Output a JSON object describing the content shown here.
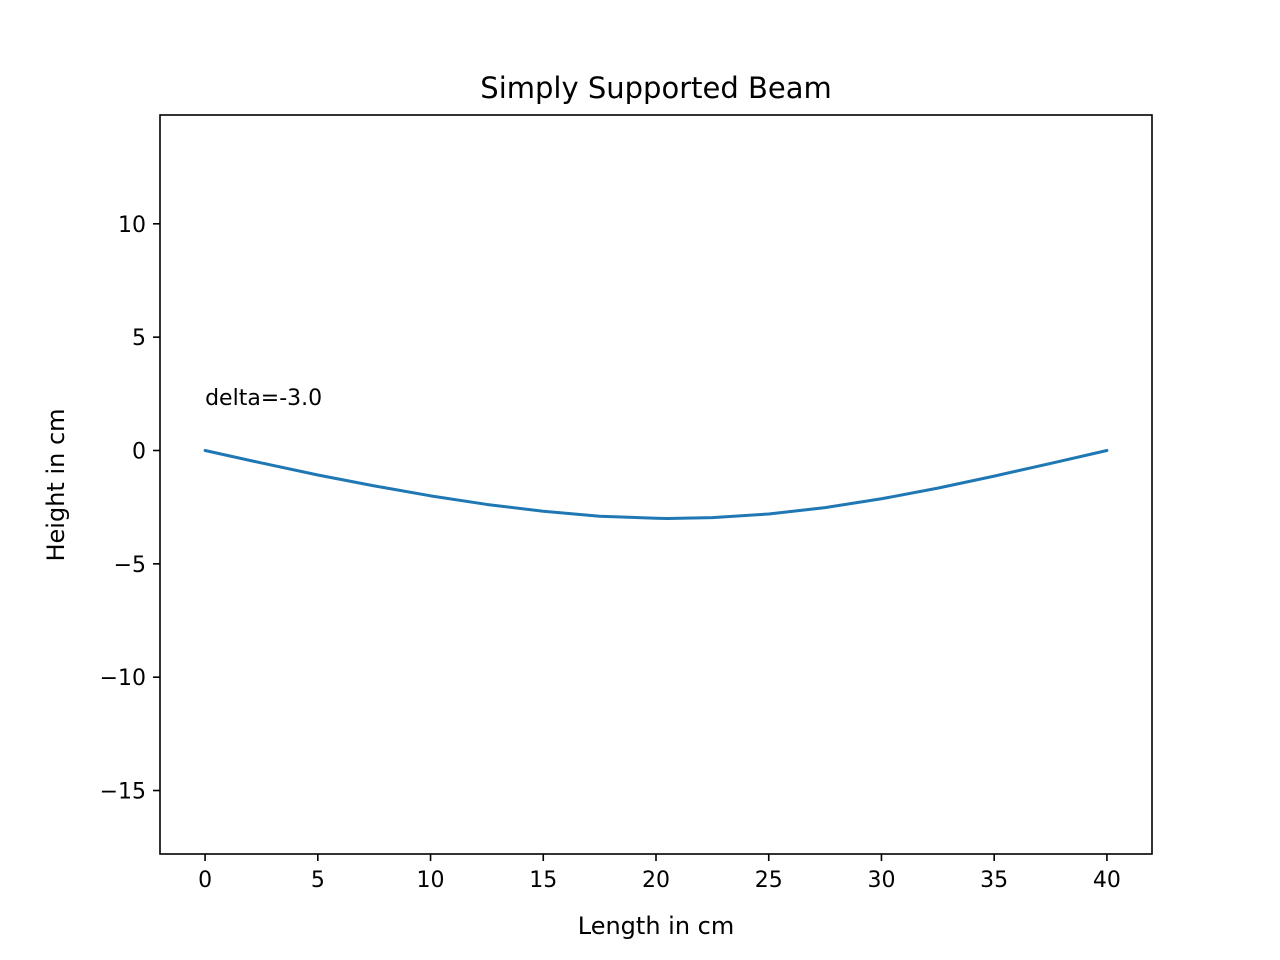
{
  "chart_data": {
    "type": "line",
    "title": "Simply Supported Beam",
    "xlabel": "Length in cm",
    "ylabel": "Height in cm",
    "xlim": [
      -2,
      42
    ],
    "ylim": [
      -17.8,
      14.8
    ],
    "xticks": [
      0,
      5,
      10,
      15,
      20,
      25,
      30,
      35,
      40
    ],
    "yticks": [
      10,
      5,
      0,
      -5,
      -10,
      -15
    ],
    "xtick_labels": [
      "0",
      "5",
      "10",
      "15",
      "20",
      "25",
      "30",
      "35",
      "40"
    ],
    "ytick_labels": [
      "10",
      "5",
      "0",
      "−5",
      "−10",
      "−15"
    ],
    "grid": false,
    "series": [
      {
        "color": "#1f77b4",
        "x": [
          0,
          2.5,
          5,
          7.5,
          10,
          12.5,
          15,
          17.5,
          20,
          20.5,
          22.5,
          25,
          27.5,
          30,
          32.5,
          35,
          37.5,
          40
        ],
        "y": [
          0,
          -0.55,
          -1.08,
          -1.56,
          -2.0,
          -2.38,
          -2.68,
          -2.9,
          -2.99,
          -3.0,
          -2.96,
          -2.8,
          -2.52,
          -2.13,
          -1.66,
          -1.13,
          -0.57,
          0
        ]
      }
    ],
    "annotations": [
      {
        "text": "delta=-3.0",
        "x": 0,
        "y": 2.0
      }
    ]
  }
}
